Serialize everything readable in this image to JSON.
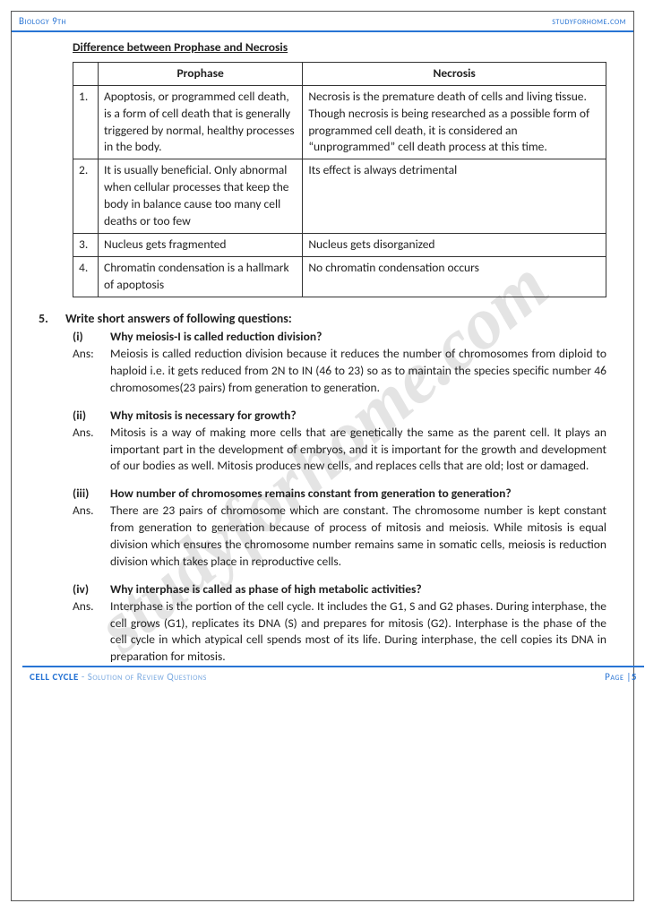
{
  "header": {
    "left": "Biology 9th",
    "right": "studyforhome.com"
  },
  "watermark": "studyforhome.com",
  "table": {
    "title": "Difference between Prophase and Necrosis",
    "col1": "Prophase",
    "col2": "Necrosis",
    "rows": [
      {
        "n": "1.",
        "a": "Apoptosis, or programmed cell death, is a form of cell death that is generally triggered by normal, healthy processes in the body.",
        "b": "Necrosis is the premature death of cells and living tissue. Though necrosis is being researched as a possible form of programmed cell death, it is considered an “unprogrammed” cell death process at this time."
      },
      {
        "n": "2.",
        "a": "It is usually beneficial. Only abnormal when cellular processes that keep the body in balance cause too many cell deaths or too few",
        "b": "Its effect is always detrimental"
      },
      {
        "n": "3.",
        "a": "Nucleus gets fragmented",
        "b": "Nucleus gets disorganized"
      },
      {
        "n": "4.",
        "a": "Chromatin condensation is a hallmark of apoptosis",
        "b": "No chromatin condensation occurs"
      }
    ]
  },
  "question": {
    "num": "5.",
    "text": "Write short answers of following questions:"
  },
  "subs": [
    {
      "n": "(i)",
      "q": "Why meiosis-I is called reduction division?",
      "al": "Ans:",
      "a": "Meiosis is called reduction division because it reduces the number of chromosomes from diploid to haploid i.e. it gets reduced from 2N to IN (46 to 23) so as to maintain the species specific number 46 chromosomes(23 pairs) from generation to generation."
    },
    {
      "n": "(ii)",
      "q": "Why mitosis is necessary for growth?",
      "al": "Ans.",
      "a": "Mitosis is a way of making more cells that are genetically the same as the parent cell. It plays an important part in the development of embryos, and it is important for the growth and development of our bodies as well. Mitosis produces new cells, and replaces cells that are old; lost or damaged."
    },
    {
      "n": "(iii)",
      "q": "How number of chromosomes remains constant from generation to generation?",
      "al": "Ans.",
      "a": "There are 23 pairs of chromosome which are constant. The chromosome number is kept constant from generation to generation because of process of mitosis and meiosis. While mitosis is equal division which ensures the chromosome number remains same in somatic cells, meiosis is reduction division which takes place in reproductive cells."
    },
    {
      "n": "(iv)",
      "q": "Why interphase is called as phase of high metabolic activities?",
      "al": "Ans.",
      "a": "Interphase is the portion of the cell cycle. It includes the G1, S and G2 phases. During interphase, the cell grows (G1), replicates its DNA (S) and prepares for mitosis (G2). Interphase is the phase of the cell cycle in which atypical cell spends most of its life. During interphase, the cell copies its DNA in preparation for mitosis."
    }
  ],
  "footer": {
    "chapter": "CELL CYCLE",
    "sub": " - Solution of Review Questions",
    "page_lbl": "Page |",
    "page_num": "5"
  }
}
